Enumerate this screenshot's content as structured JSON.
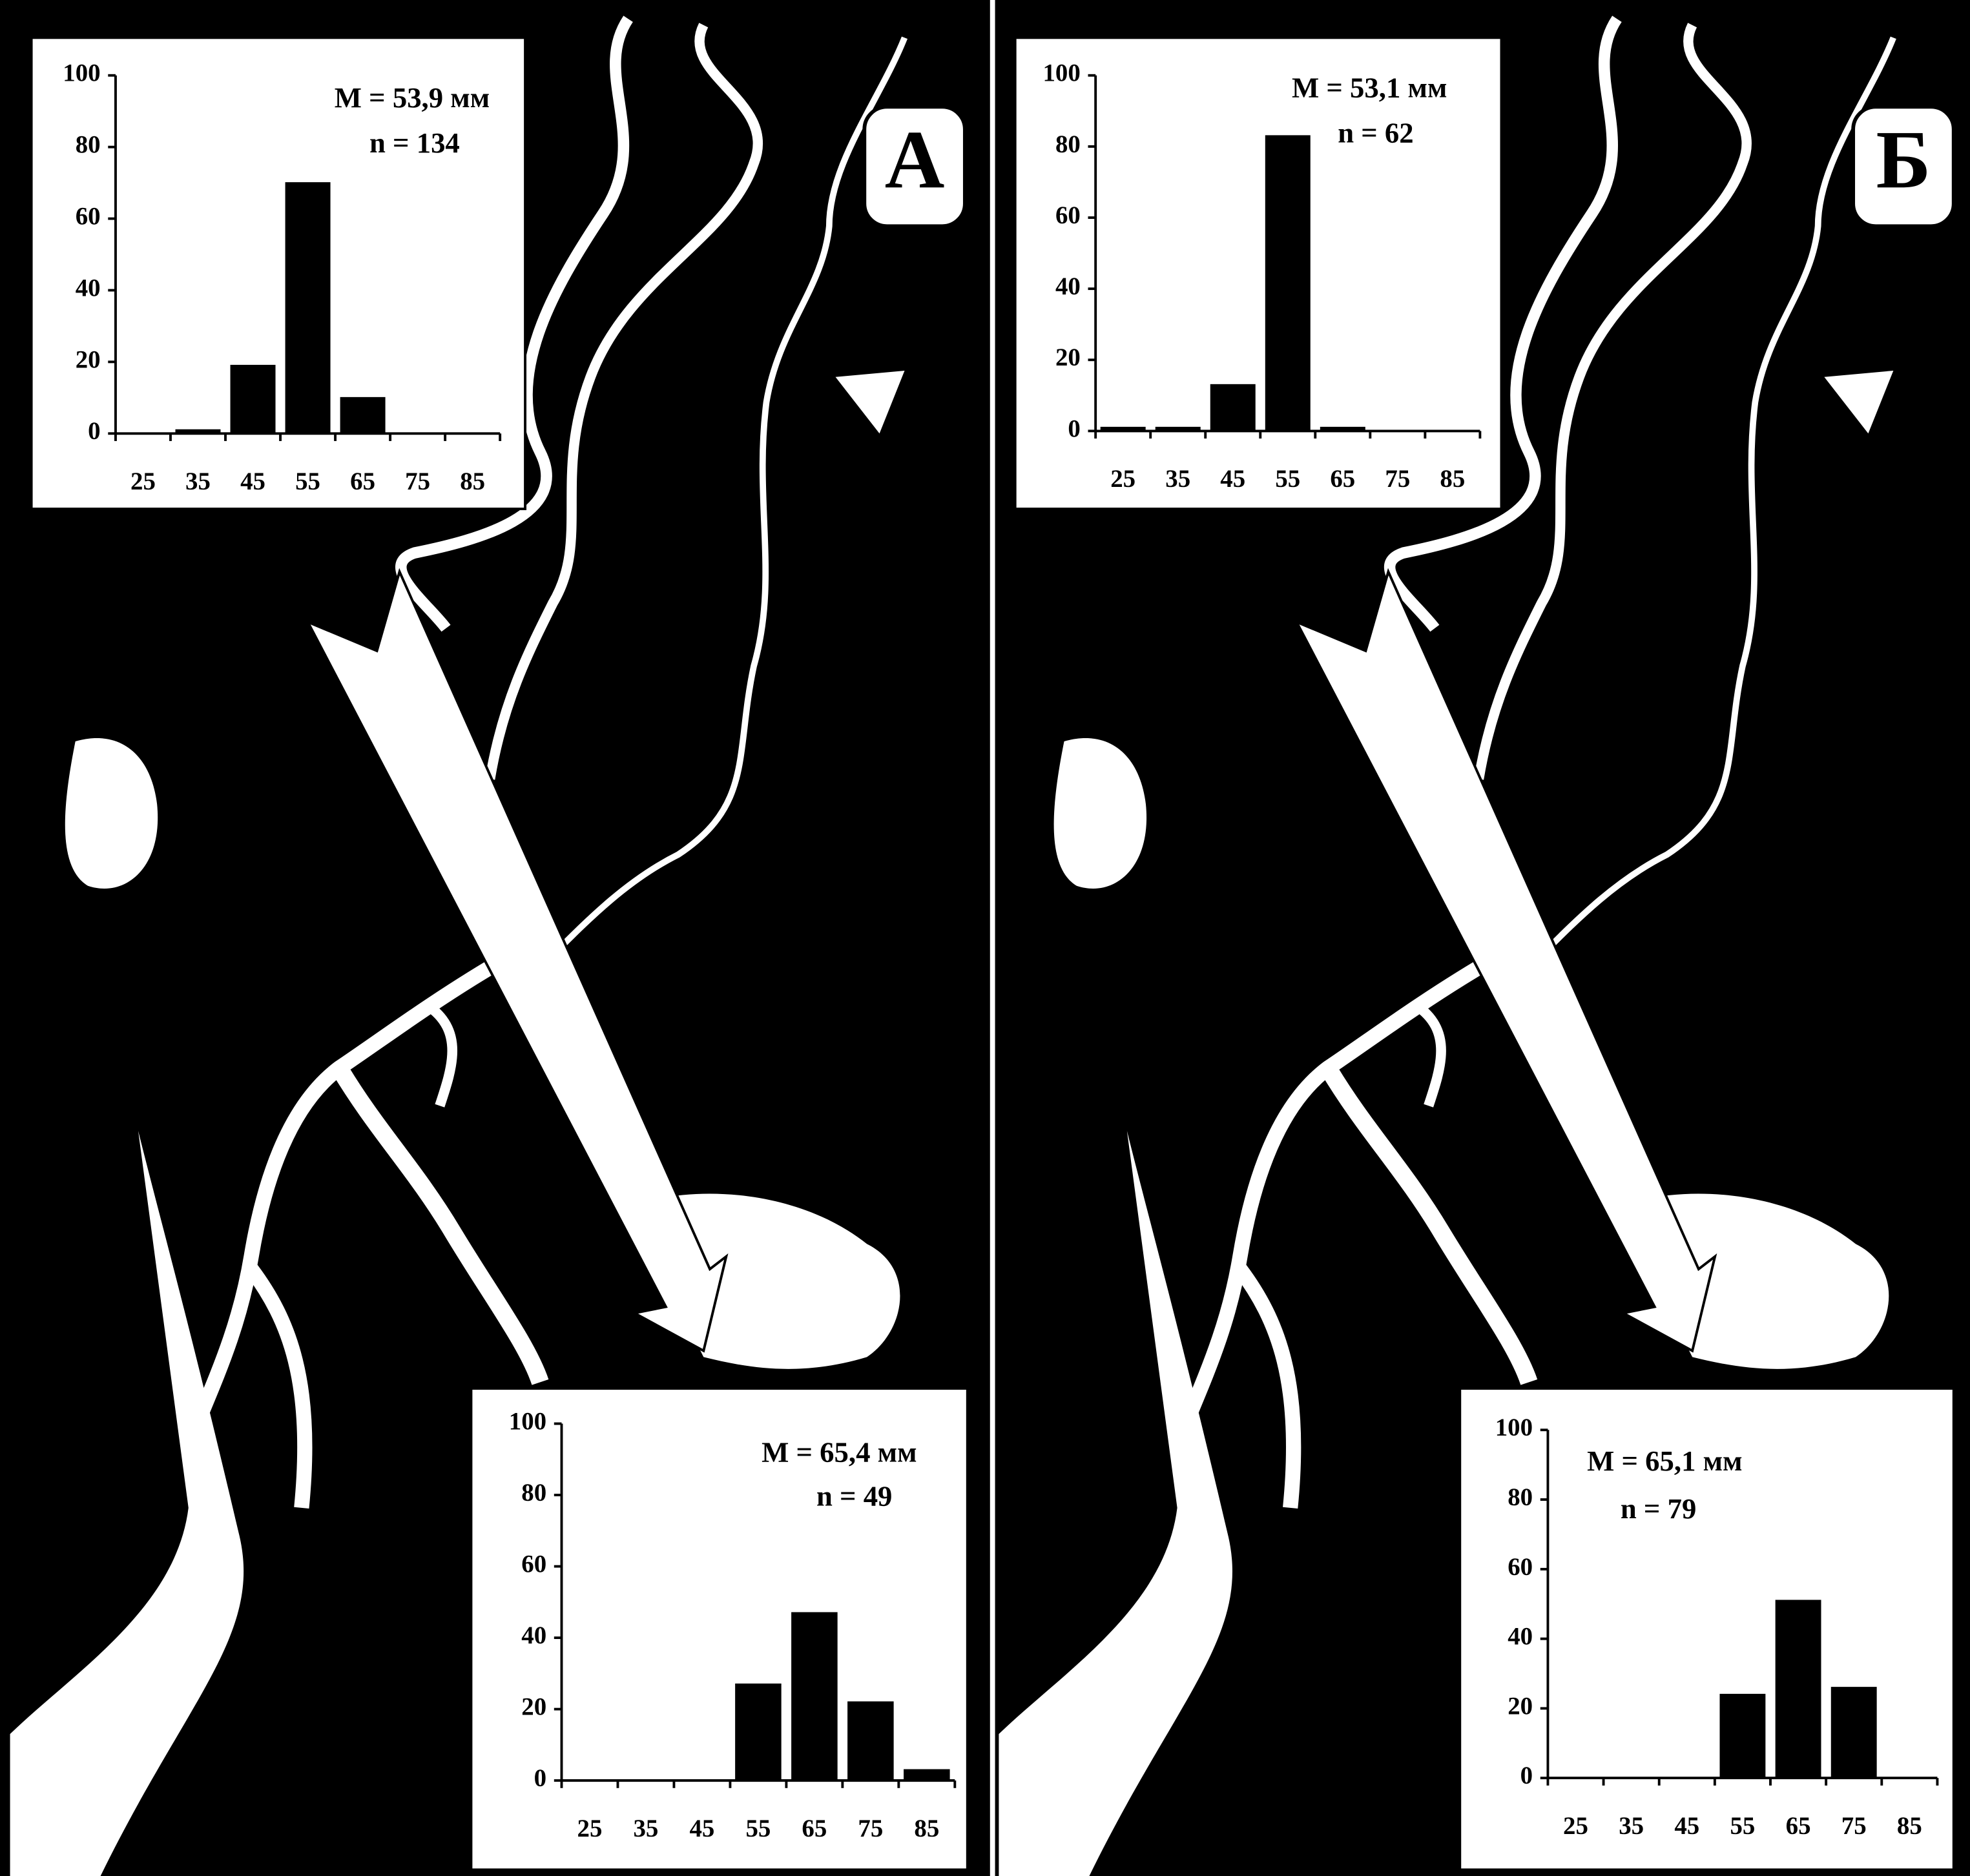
{
  "panels": [
    {
      "label": "А"
    },
    {
      "label": "Б"
    }
  ],
  "chart_data": [
    {
      "type": "bar",
      "categories": [
        "25",
        "35",
        "45",
        "55",
        "65",
        "75",
        "85"
      ],
      "values": [
        0,
        1,
        19,
        70,
        10,
        0,
        0
      ],
      "color": "#000000",
      "ylim": [
        0,
        100
      ],
      "yticks": [
        0,
        20,
        40,
        60,
        80,
        100
      ],
      "annotations": [
        "M = 53,9 мм",
        "n = 134"
      ]
    },
    {
      "type": "bar",
      "categories": [
        "25",
        "35",
        "45",
        "55",
        "65",
        "75",
        "85"
      ],
      "values": [
        0,
        0,
        0,
        27,
        47,
        22,
        3
      ],
      "color": "#000000",
      "ylim": [
        0,
        100
      ],
      "yticks": [
        0,
        20,
        40,
        60,
        80,
        100
      ],
      "annotations": [
        "M = 65,4 мм",
        "n = 49"
      ]
    },
    {
      "type": "bar",
      "categories": [
        "25",
        "35",
        "45",
        "55",
        "65",
        "75",
        "85"
      ],
      "values": [
        1,
        1,
        13,
        83,
        1,
        0,
        0
      ],
      "color": "#000000",
      "ylim": [
        0,
        100
      ],
      "yticks": [
        0,
        20,
        40,
        60,
        80,
        100
      ],
      "annotations": [
        "M = 53,1 мм",
        "n = 62"
      ]
    },
    {
      "type": "bar",
      "categories": [
        "25",
        "35",
        "45",
        "55",
        "65",
        "75",
        "85"
      ],
      "values": [
        0,
        0,
        0,
        24,
        51,
        26,
        0
      ],
      "color": "#000000",
      "ylim": [
        0,
        100
      ],
      "yticks": [
        0,
        20,
        40,
        60,
        80,
        100
      ],
      "annotations": [
        "M = 65,1 мм",
        "n = 79"
      ]
    }
  ]
}
